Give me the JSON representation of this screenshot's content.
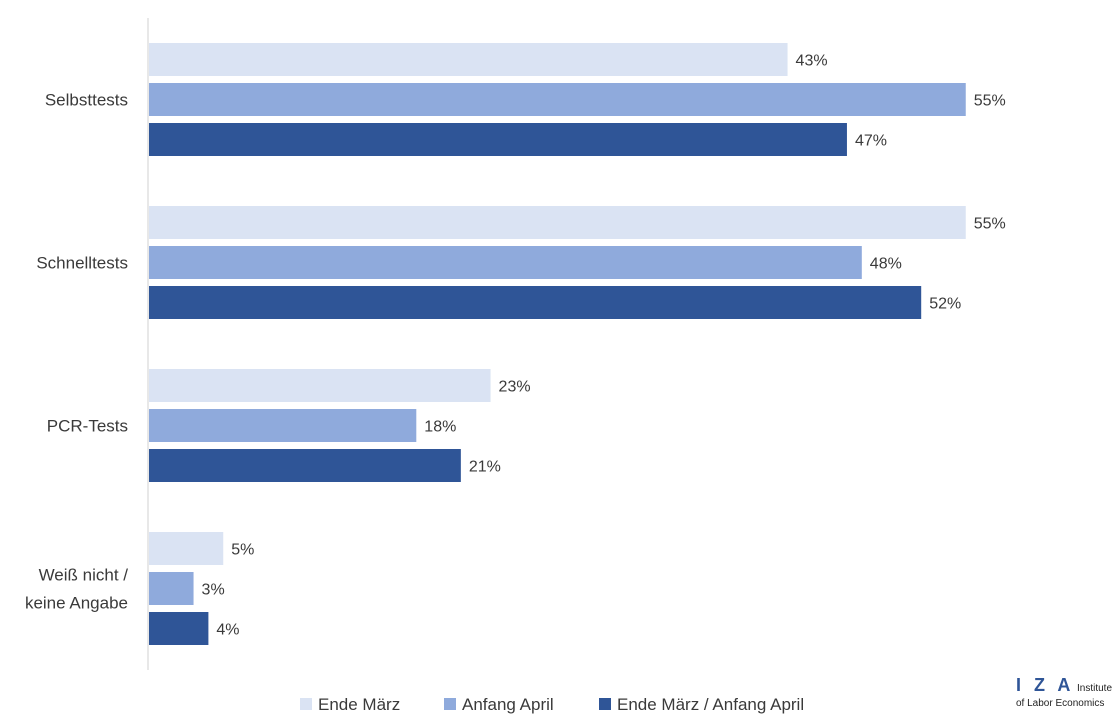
{
  "chart_data": {
    "type": "bar",
    "orientation": "horizontal",
    "categories": [
      "Selbsttests",
      "Schnelltests",
      "PCR-Tests",
      "Weiß nicht / keine Angabe"
    ],
    "series": [
      {
        "name": "Ende März",
        "values": [
          43,
          55,
          23,
          5
        ],
        "color": "#dae3f3"
      },
      {
        "name": "Anfang April",
        "values": [
          55,
          48,
          18,
          3
        ],
        "color": "#8faadc"
      },
      {
        "name": "Ende März / Anfang April",
        "values": [
          47,
          52,
          21,
          4
        ],
        "color": "#2f5597"
      }
    ],
    "value_suffix": "%",
    "xlim": [
      0,
      55
    ],
    "grid": false,
    "legend_position": "bottom"
  },
  "branding": {
    "logo_letters": "I Z A",
    "logo_line1": "Institute",
    "logo_line2": "of Labor Economics"
  }
}
